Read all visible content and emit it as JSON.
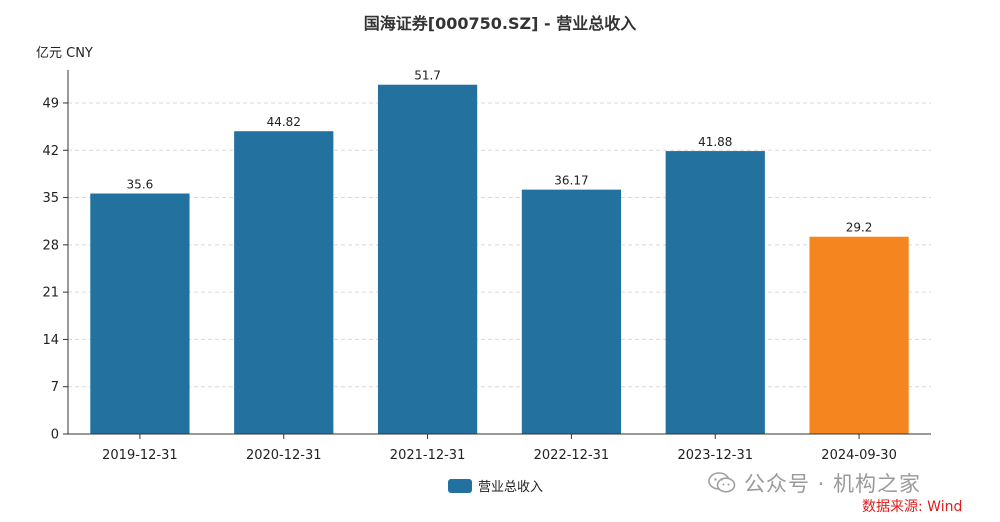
{
  "title": "国海证券[000750.SZ] - 营业总收入",
  "unit_label": "亿元  CNY",
  "legend": {
    "label": "营业总收入",
    "color": "#22719e"
  },
  "watermark": {
    "text": "公众号 · 机构之家",
    "icon": "wechat-icon"
  },
  "source": "数据来源: Wind",
  "colors": {
    "bar": "#22719e",
    "highlight": "#f5861f",
    "grid": "#d9d9d9",
    "axis": "#333333"
  },
  "chart_data": {
    "type": "bar",
    "categories": [
      "2019-12-31",
      "2020-12-31",
      "2021-12-31",
      "2022-12-31",
      "2023-12-31",
      "2024-09-30"
    ],
    "series": [
      {
        "name": "营业总收入",
        "values": [
          35.6,
          44.82,
          51.7,
          36.17,
          41.88,
          29.2
        ]
      }
    ],
    "data_labels": [
      "35.6",
      "44.82",
      "51.7",
      "36.17",
      "41.88",
      "29.2"
    ],
    "highlight_index": 5,
    "yticks": [
      0,
      7,
      14,
      21,
      28,
      35,
      42,
      49
    ],
    "ylim": [
      0,
      52.4
    ],
    "grid": true,
    "legend_position": "bottom"
  }
}
